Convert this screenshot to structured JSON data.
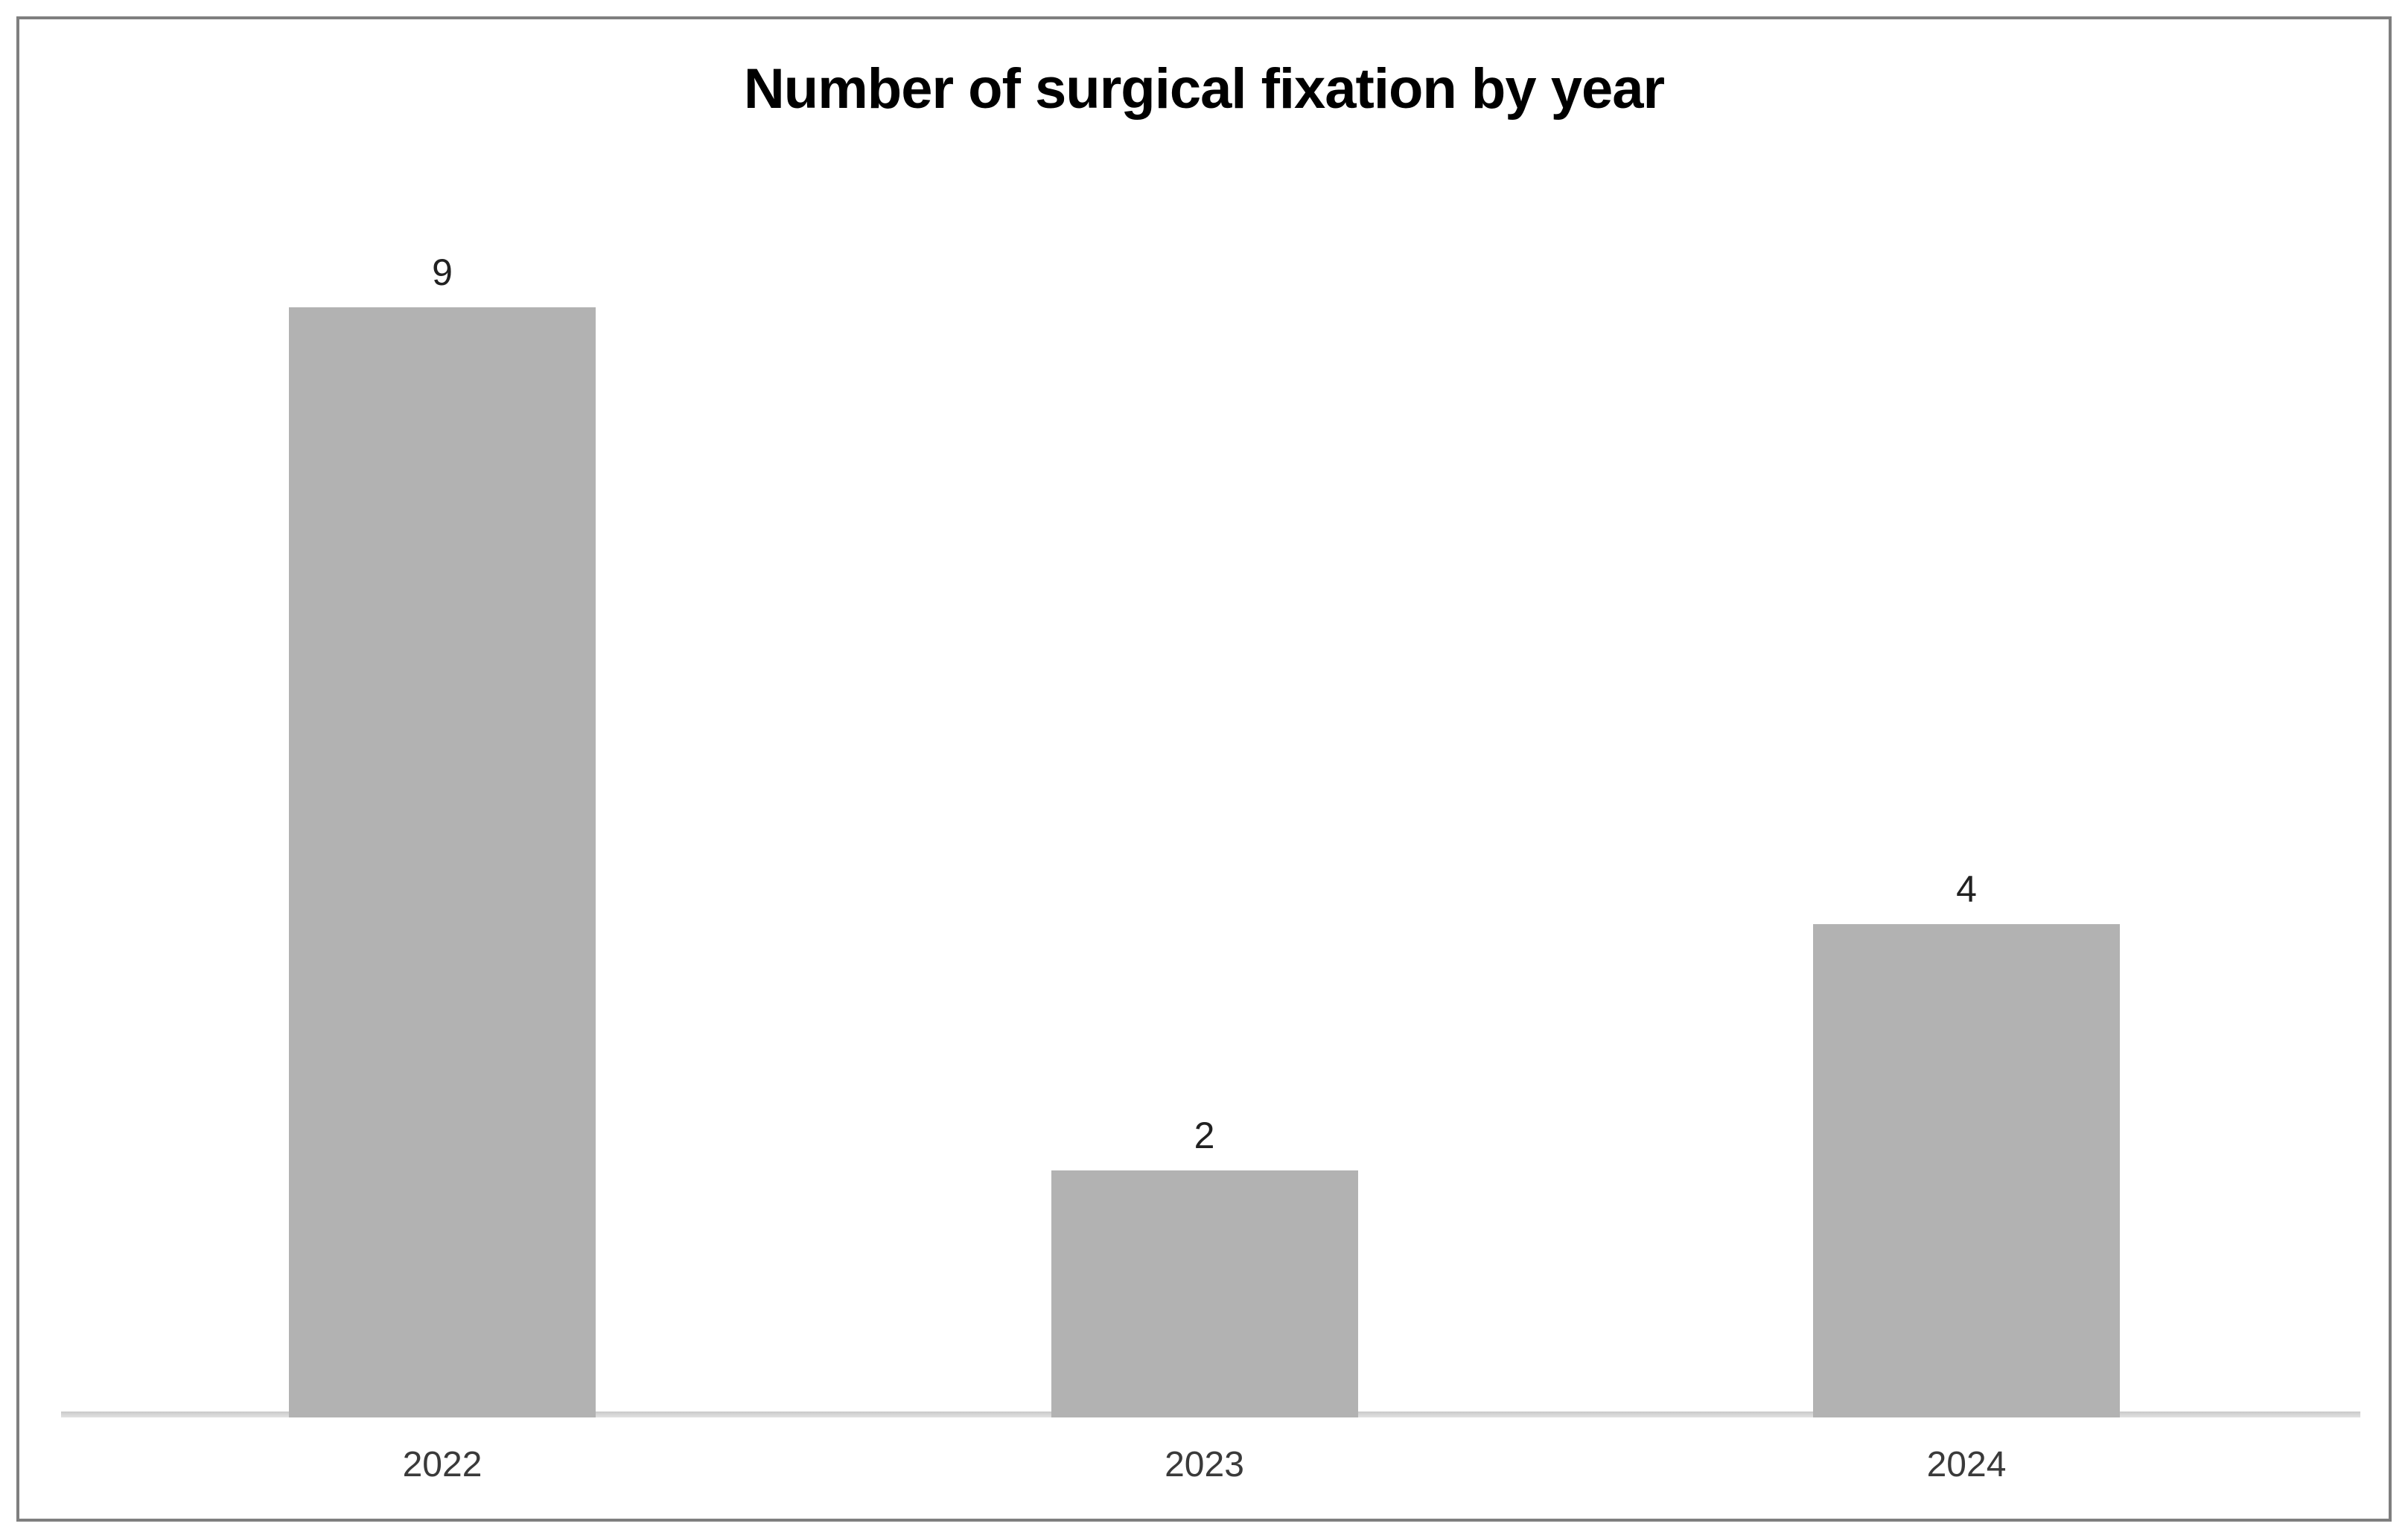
{
  "chart_data": {
    "type": "bar",
    "title": "Number of surgical fixation by year",
    "categories": [
      "2022",
      "2023",
      "2024"
    ],
    "values": [
      9,
      2,
      4
    ],
    "xlabel": "",
    "ylabel": "",
    "ylim": [
      0,
      9
    ],
    "data_labels_shown": true,
    "legend": "none",
    "gridlines": false,
    "y_axis_shown": false,
    "colors": {
      "bar_fill": "#b2b2b2",
      "axis_line": "#d0d0d0",
      "title_text": "#000000",
      "value_label_text": "#212121",
      "tick_label_text": "#3a3a3a",
      "frame_border": "#7f7f7f",
      "background": "#ffffff"
    }
  }
}
